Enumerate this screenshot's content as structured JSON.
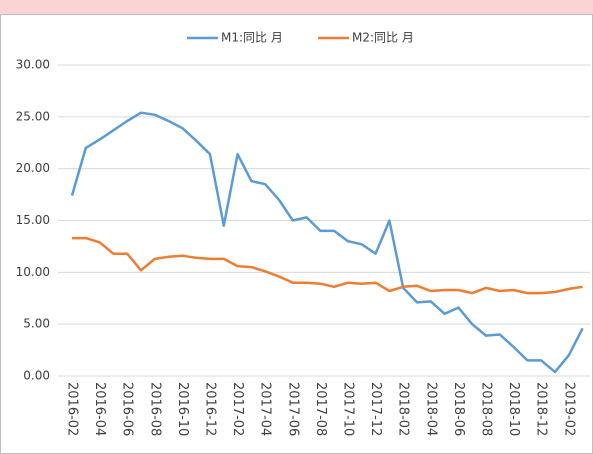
{
  "chart_data": {
    "type": "line",
    "categories": [
      "2016-02",
      null,
      "2016-04",
      null,
      "2016-06",
      null,
      "2016-08",
      null,
      "2016-10",
      null,
      "2016-12",
      null,
      "2017-02",
      null,
      "2017-04",
      null,
      "2017-06",
      null,
      "2017-08",
      null,
      "2017-10",
      null,
      "2017-12",
      null,
      "2018-02",
      null,
      "2018-04",
      null,
      "2018-06",
      null,
      "2018-08",
      null,
      "2018-10",
      null,
      "2018-12",
      null,
      "2019-02",
      null
    ],
    "series": [
      {
        "name": "M1:同比 月",
        "color": "#5b9bd5",
        "values": [
          17.4,
          22.0,
          22.8,
          23.7,
          24.6,
          25.4,
          25.2,
          24.6,
          23.9,
          22.7,
          21.4,
          14.5,
          21.4,
          18.8,
          18.5,
          17.0,
          15.0,
          15.3,
          14.0,
          14.0,
          13.0,
          12.7,
          11.8,
          15.0,
          8.5,
          7.1,
          7.2,
          6.0,
          6.6,
          5.0,
          3.9,
          4.0,
          2.8,
          1.5,
          1.5,
          0.4,
          2.0,
          4.6
        ]
      },
      {
        "name": "M2:同比 月",
        "color": "#ed7d31",
        "values": [
          13.3,
          13.3,
          12.9,
          11.8,
          11.8,
          10.2,
          11.3,
          11.5,
          11.6,
          11.4,
          11.3,
          11.3,
          10.6,
          10.5,
          10.1,
          9.6,
          9.0,
          9.0,
          8.9,
          8.6,
          9.0,
          8.9,
          9.0,
          8.2,
          8.6,
          8.7,
          8.2,
          8.3,
          8.3,
          8.0,
          8.5,
          8.2,
          8.3,
          8.0,
          8.0,
          8.1,
          8.4,
          8.6
        ]
      }
    ],
    "ylim": [
      0,
      30
    ],
    "yticks": [
      {
        "value": 0,
        "label": "0.00"
      },
      {
        "value": 5,
        "label": "5.00"
      },
      {
        "value": 10,
        "label": "10.00"
      },
      {
        "value": 15,
        "label": "15.00"
      },
      {
        "value": 20,
        "label": "20.00"
      },
      {
        "value": 25,
        "label": "25.00"
      },
      {
        "value": 30,
        "label": "30.00"
      }
    ],
    "grid": true,
    "legend": "top"
  }
}
